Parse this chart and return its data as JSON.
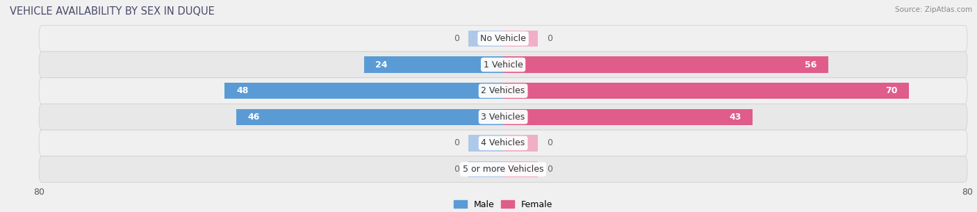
{
  "title": "VEHICLE AVAILABILITY BY SEX IN DUQUE",
  "source": "Source: ZipAtlas.com",
  "categories": [
    "No Vehicle",
    "1 Vehicle",
    "2 Vehicles",
    "3 Vehicles",
    "4 Vehicles",
    "5 or more Vehicles"
  ],
  "male_values": [
    0,
    24,
    48,
    46,
    0,
    0
  ],
  "female_values": [
    0,
    56,
    70,
    43,
    0,
    0
  ],
  "male_color_strong": "#5b9bd5",
  "male_color_light": "#aec9e8",
  "female_color_strong": "#e05c8a",
  "female_color_light": "#f0afc6",
  "axis_limit": 80,
  "bar_height": 0.62,
  "row_colors": [
    "#f0f0f0",
    "#e8e8e8"
  ],
  "bg_color": "#f0f0f0",
  "legend_male": "Male",
  "legend_female": "Female",
  "title_fontsize": 10.5,
  "label_fontsize": 9,
  "category_fontsize": 9,
  "axis_label_fontsize": 9,
  "small_bar_size": 6
}
